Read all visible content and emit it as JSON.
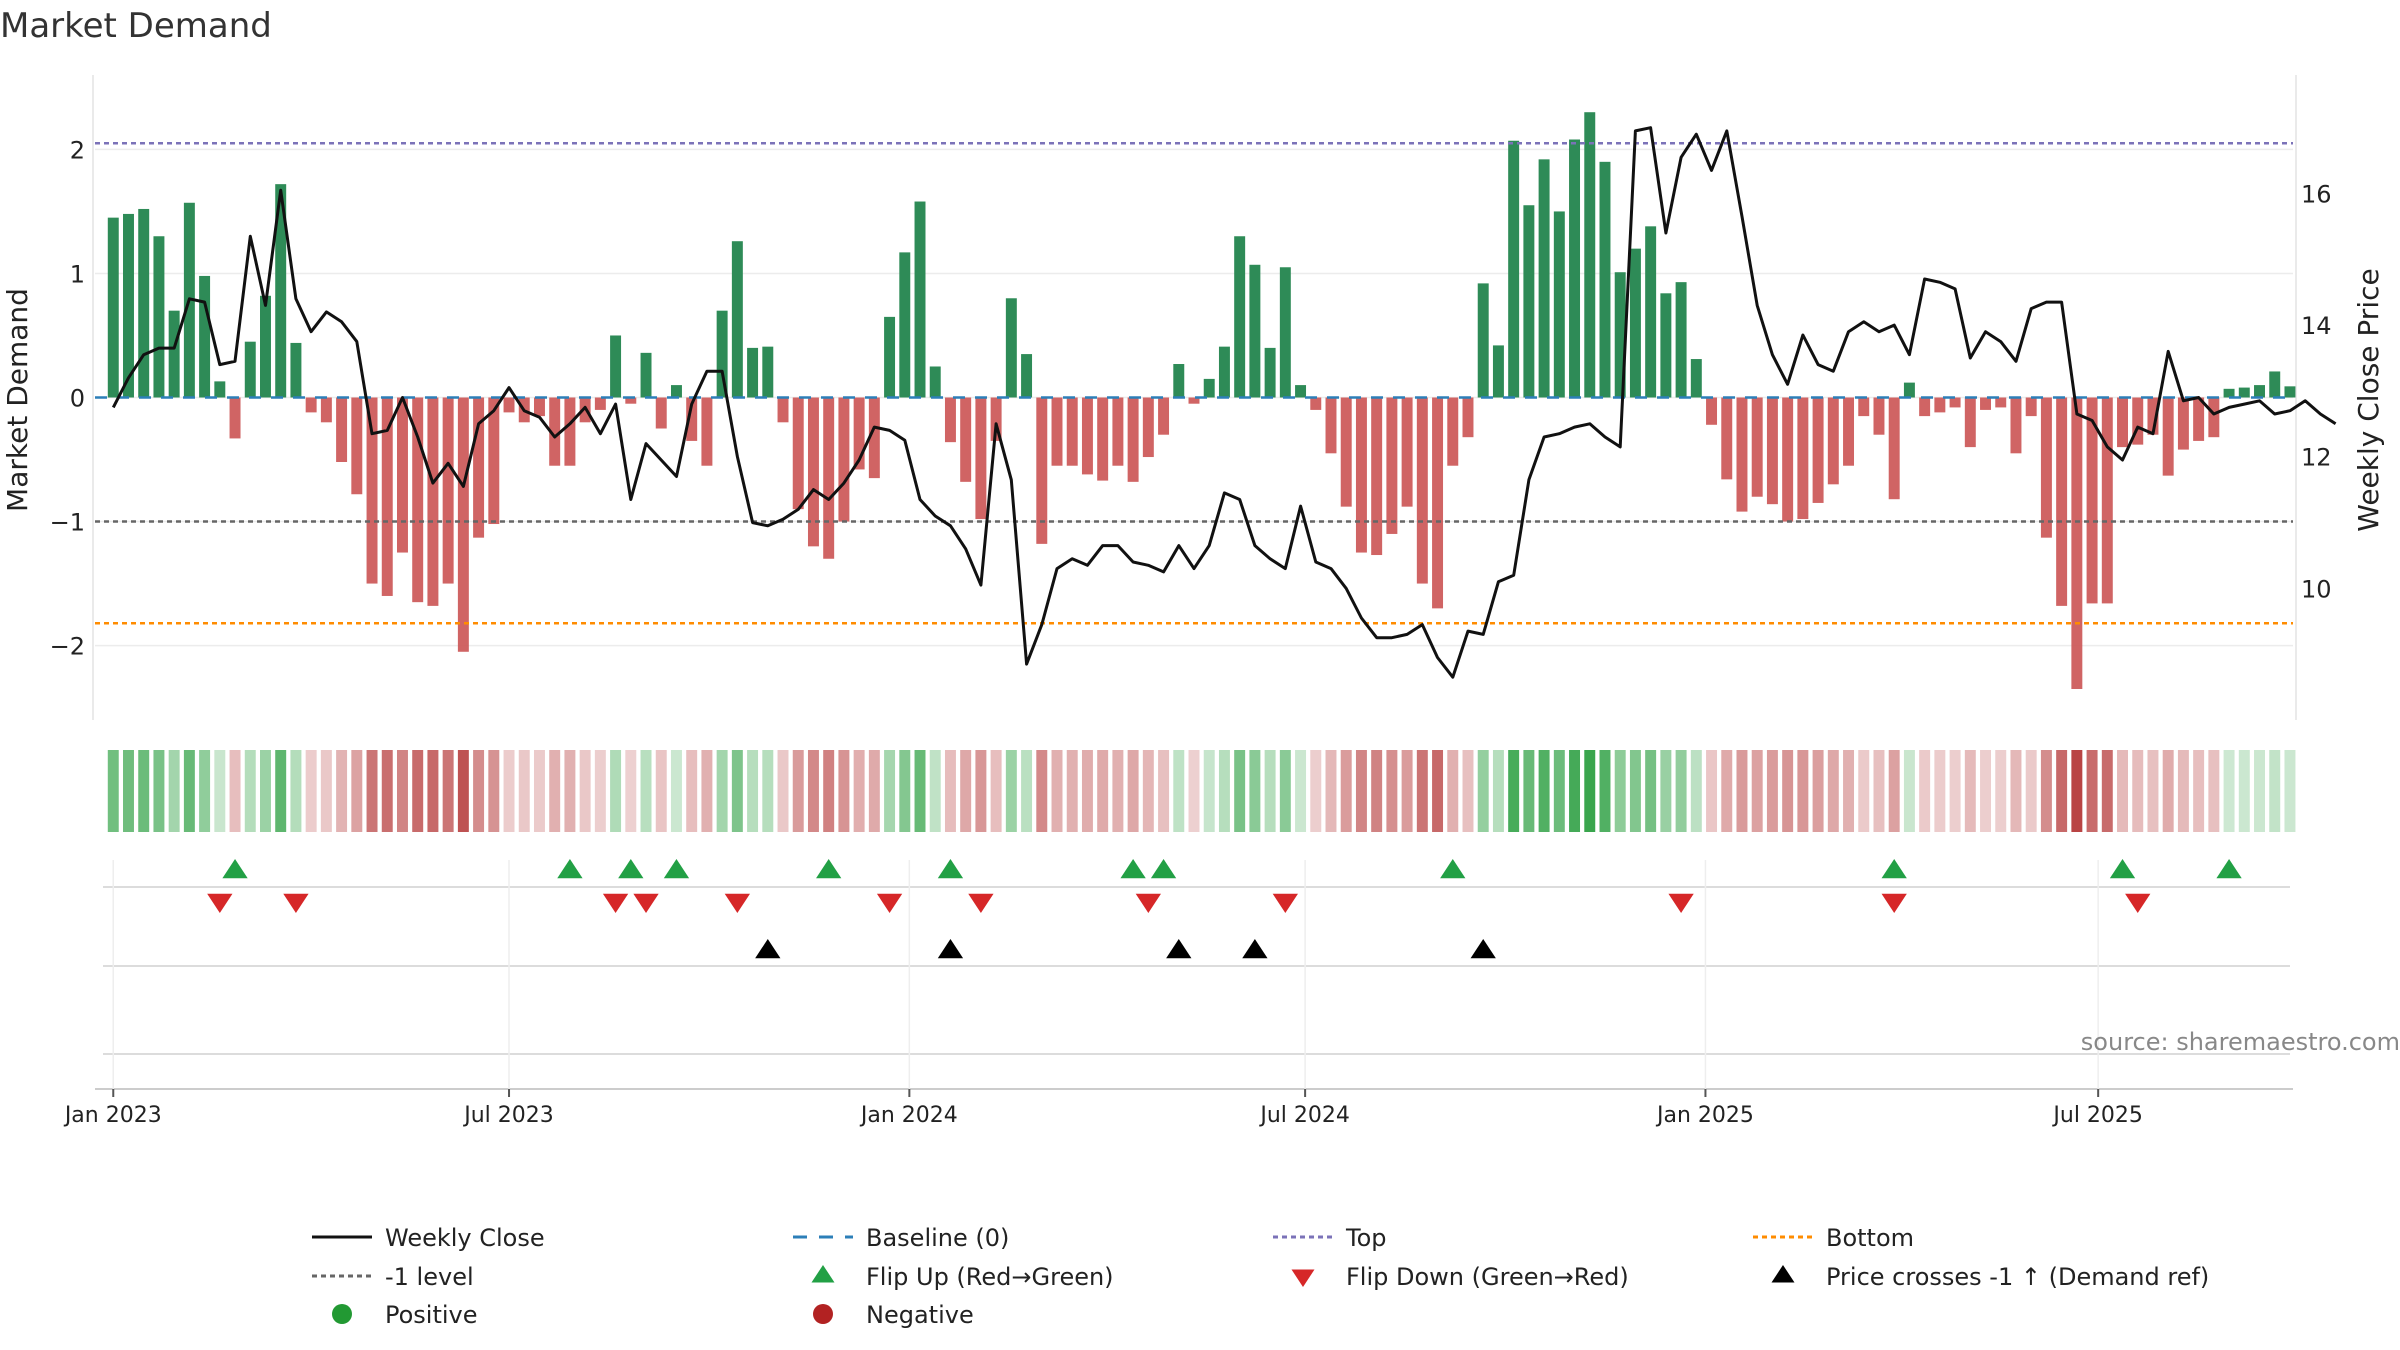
{
  "chart_data": {
    "type": "bar+line",
    "title": "Market Demand",
    "ylabel_left": "Market Demand",
    "ylabel_right": "Weekly Close Price",
    "source_note": "source: sharemaestro.com",
    "ylim_left": [
      -2.6,
      2.6
    ],
    "ylim_right": [
      8.0,
      17.8
    ],
    "left_ticks": [
      {
        "v": 2,
        "label": "2"
      },
      {
        "v": 1,
        "label": "1"
      },
      {
        "v": 0,
        "label": "0"
      },
      {
        "v": -1,
        "label": "−1"
      },
      {
        "v": -2,
        "label": "−2"
      }
    ],
    "right_ticks": [
      {
        "v": 16,
        "label": "16"
      },
      {
        "v": 14,
        "label": "14"
      },
      {
        "v": 12,
        "label": "12"
      },
      {
        "v": 10,
        "label": "10"
      }
    ],
    "x_ticks": [
      {
        "week": 0,
        "label": "Jan 2023"
      },
      {
        "week": 26,
        "label": "Jul 2023"
      },
      {
        "week": 52.3,
        "label": "Jan 2024"
      },
      {
        "week": 78.3,
        "label": "Jul 2024"
      },
      {
        "week": 104.6,
        "label": "Jan 2025"
      },
      {
        "week": 130.4,
        "label": "Jul 2025"
      }
    ],
    "x_range_weeks": [
      -1.2,
      143.2
    ],
    "reference_levels": {
      "top": 2.05,
      "minus_one": -1.0,
      "bottom": -1.82,
      "baseline": 0
    },
    "demand": [
      1.45,
      1.48,
      1.52,
      1.3,
      0.7,
      1.57,
      0.98,
      0.13,
      -0.33,
      0.45,
      0.82,
      1.72,
      0.44,
      -0.12,
      -0.2,
      -0.52,
      -0.78,
      -1.5,
      -1.6,
      -1.25,
      -1.65,
      -1.68,
      -1.5,
      -2.05,
      -1.13,
      -1.02,
      -0.12,
      -0.2,
      -0.15,
      -0.55,
      -0.55,
      -0.2,
      -0.1,
      0.5,
      -0.05,
      0.36,
      -0.25,
      0.1,
      -0.35,
      -0.55,
      0.7,
      1.26,
      0.4,
      0.41,
      -0.2,
      -0.9,
      -1.2,
      -1.3,
      -1.0,
      -0.58,
      -0.65,
      0.65,
      1.17,
      1.58,
      0.25,
      -0.36,
      -0.68,
      -0.98,
      -0.35,
      0.8,
      0.35,
      -1.18,
      -0.55,
      -0.55,
      -0.62,
      -0.67,
      -0.55,
      -0.68,
      -0.48,
      -0.3,
      0.27,
      -0.05,
      0.15,
      0.41,
      1.3,
      1.07,
      0.4,
      1.05,
      0.1,
      -0.1,
      -0.45,
      -0.88,
      -1.25,
      -1.27,
      -1.1,
      -0.88,
      -1.5,
      -1.7,
      -0.55,
      -0.32,
      0.92,
      0.42,
      2.07,
      1.55,
      1.92,
      1.5,
      2.08,
      2.3,
      1.9,
      1.01,
      1.2,
      1.38,
      0.84,
      0.93,
      0.31,
      -0.22,
      -0.66,
      -0.92,
      -0.8,
      -0.86,
      -1.0,
      -0.98,
      -0.85,
      -0.7,
      -0.55,
      -0.15,
      -0.3,
      -0.82,
      0.12,
      -0.15,
      -0.12,
      -0.08,
      -0.4,
      -0.1,
      -0.08,
      -0.45,
      -0.15,
      -1.13,
      -1.68,
      -2.35,
      -1.66,
      -1.66,
      -0.4,
      -0.38,
      -0.3,
      -0.63,
      -0.42,
      -0.35,
      -0.32,
      0.07,
      0.08,
      0.1,
      0.21,
      0.09
    ],
    "close": [
      12.75,
      13.2,
      13.55,
      13.65,
      13.65,
      14.4,
      14.35,
      13.4,
      13.45,
      15.35,
      14.3,
      16.05,
      14.4,
      13.9,
      14.2,
      14.05,
      13.75,
      12.35,
      12.4,
      12.9,
      12.3,
      11.6,
      11.9,
      11.55,
      12.5,
      12.7,
      13.05,
      12.7,
      12.6,
      12.3,
      12.5,
      12.75,
      12.35,
      12.8,
      11.35,
      12.2,
      11.95,
      11.7,
      12.8,
      13.3,
      13.3,
      12.0,
      11.0,
      10.95,
      11.05,
      11.2,
      11.5,
      11.35,
      11.6,
      11.95,
      12.45,
      12.4,
      12.25,
      11.35,
      11.1,
      10.95,
      10.6,
      10.05,
      12.5,
      11.65,
      8.85,
      9.45,
      10.3,
      10.45,
      10.35,
      10.65,
      10.65,
      10.4,
      10.35,
      10.25,
      10.65,
      10.3,
      10.65,
      11.45,
      11.35,
      10.65,
      10.45,
      10.3,
      11.25,
      10.4,
      10.3,
      10.0,
      9.55,
      9.25,
      9.25,
      9.3,
      9.45,
      8.95,
      8.65,
      9.35,
      9.3,
      10.1,
      10.2,
      11.65,
      12.3,
      12.35,
      12.45,
      12.5,
      12.3,
      12.15,
      16.95,
      17.0,
      15.4,
      16.55,
      16.9,
      16.35,
      16.95,
      15.65,
      14.3,
      13.55,
      13.1,
      13.85,
      13.4,
      13.3,
      13.9,
      14.05,
      13.9,
      14.0,
      13.55,
      14.7,
      14.65,
      14.55,
      13.5,
      13.9,
      13.75,
      13.45,
      14.25,
      14.35,
      14.35,
      12.65,
      12.55,
      12.15,
      11.95,
      12.45,
      12.35,
      13.6,
      12.85,
      12.9,
      12.65,
      12.75,
      12.8,
      12.85,
      12.65,
      12.7,
      12.85,
      12.65,
      12.5
    ]
  },
  "markers": {
    "flip_up_weeks": [
      8,
      30,
      34,
      37,
      47,
      55,
      67,
      69,
      88,
      117,
      132,
      139
    ],
    "flip_down_weeks": [
      7,
      12,
      33,
      35,
      41,
      51,
      57,
      68,
      77,
      103,
      117,
      133
    ],
    "price_cross_weeks": [
      43,
      55,
      70,
      75,
      90
    ]
  },
  "legend": {
    "weekly_close": "Weekly Close",
    "baseline": "Baseline (0)",
    "top": "Top",
    "bottom": "Bottom",
    "minus_one": "-1 level",
    "flip_up": "Flip Up (Red→Green)",
    "flip_down": "Flip Down (Green→Red)",
    "price_cross": "Price crosses -1 ↑ (Demand ref)",
    "positive": "Positive",
    "negative": "Negative"
  },
  "colors": {
    "positive_bar": "#2e8b57",
    "negative_bar": "#cd5c5c",
    "weekly_close": "#111111",
    "baseline": "#2c7fb8",
    "top": "#7b72b8",
    "bottom": "#ff8c00",
    "minus_one": "#666666",
    "flip_up": "#22a045",
    "flip_down": "#d62728",
    "price_cross": "#000000",
    "positive_legend": "#229933",
    "negative_legend": "#b22222"
  }
}
